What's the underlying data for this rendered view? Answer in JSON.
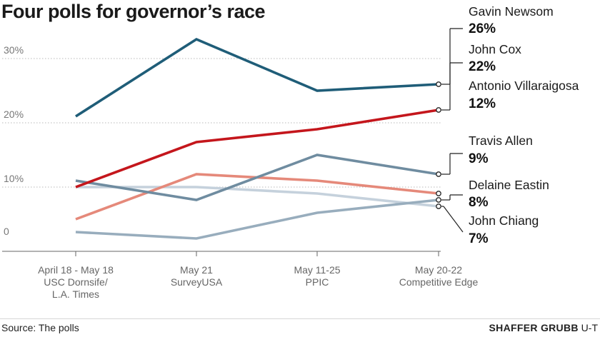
{
  "title": "Four polls for governor’s race",
  "source": "Source: The polls",
  "credit_first": "SHAFFER GRUBB",
  "credit_last": "U-T",
  "chart_data": {
    "type": "line",
    "title": "Four polls for governor’s race",
    "categories": [
      [
        "April 18 - May 18",
        "USC Dornsife/",
        "L.A. Times"
      ],
      [
        "May 21",
        "SurveyUSA"
      ],
      [
        "May 11-25",
        "PPIC"
      ],
      [
        "May 20-22",
        "Competitive Edge"
      ]
    ],
    "y_tick_labels": [
      "0",
      "10%",
      "20%",
      "30%"
    ],
    "y_ticks": [
      0,
      10,
      20,
      30
    ],
    "ylim": [
      0,
      35
    ],
    "series": [
      {
        "name": "Gavin Newsom",
        "value_label": "26%",
        "values": [
          21,
          33,
          25,
          26
        ],
        "color": "#1f5d78"
      },
      {
        "name": "John Cox",
        "value_label": "22%",
        "values": [
          10,
          17,
          19,
          22
        ],
        "color": "#c4161c"
      },
      {
        "name": "Antonio Villaraigosa",
        "value_label": "12%",
        "values": [
          11,
          8,
          15,
          12
        ],
        "color": "#6f8ca0"
      },
      {
        "name": "Travis Allen",
        "value_label": "9%",
        "values": [
          5,
          12,
          11,
          9
        ],
        "color": "#e5897a"
      },
      {
        "name": "Delaine Eastin",
        "value_label": "8%",
        "values": [
          3,
          2,
          6,
          8
        ],
        "color": "#98adbd"
      },
      {
        "name": "John Chiang",
        "value_label": "7%",
        "values": [
          10,
          10,
          9,
          7
        ],
        "color": "#c5d1dc"
      }
    ]
  }
}
